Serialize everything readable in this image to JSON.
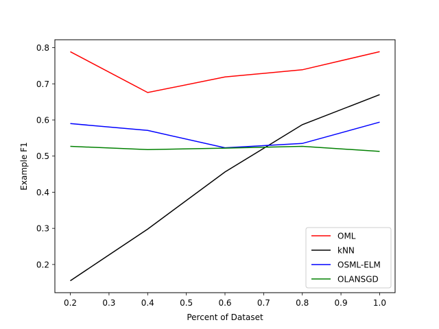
{
  "chart_data": {
    "type": "line",
    "title": "",
    "xlabel": "Percent of Dataset",
    "ylabel": "Example F1",
    "x": [
      0.2,
      0.4,
      0.6,
      0.8,
      1.0
    ],
    "xlim": [
      0.16,
      1.04
    ],
    "ylim": [
      0.122,
      0.822
    ],
    "xticks": [
      0.2,
      0.3,
      0.4,
      0.5,
      0.6,
      0.7,
      0.8,
      0.9,
      1.0
    ],
    "xtick_labels": [
      "0.2",
      "0.3",
      "0.4",
      "0.5",
      "0.6",
      "0.7",
      "0.8",
      "0.9",
      "1.0"
    ],
    "yticks": [
      0.2,
      0.3,
      0.4,
      0.5,
      0.6,
      0.7,
      0.8
    ],
    "ytick_labels": [
      "0.2",
      "0.3",
      "0.4",
      "0.5",
      "0.6",
      "0.7",
      "0.8"
    ],
    "grid": false,
    "legend_position": "bottom-right",
    "series": [
      {
        "name": "OML",
        "color": "#ff0000",
        "values": [
          0.789,
          0.676,
          0.719,
          0.739,
          0.789
        ]
      },
      {
        "name": "kNN",
        "color": "#000000",
        "values": [
          0.155,
          0.298,
          0.456,
          0.587,
          0.67
        ]
      },
      {
        "name": "OSML-ELM",
        "color": "#0000ff",
        "values": [
          0.59,
          0.571,
          0.523,
          0.535,
          0.594
        ]
      },
      {
        "name": "OLANSGD",
        "color": "#008000",
        "values": [
          0.527,
          0.518,
          0.522,
          0.527,
          0.513
        ]
      }
    ]
  }
}
